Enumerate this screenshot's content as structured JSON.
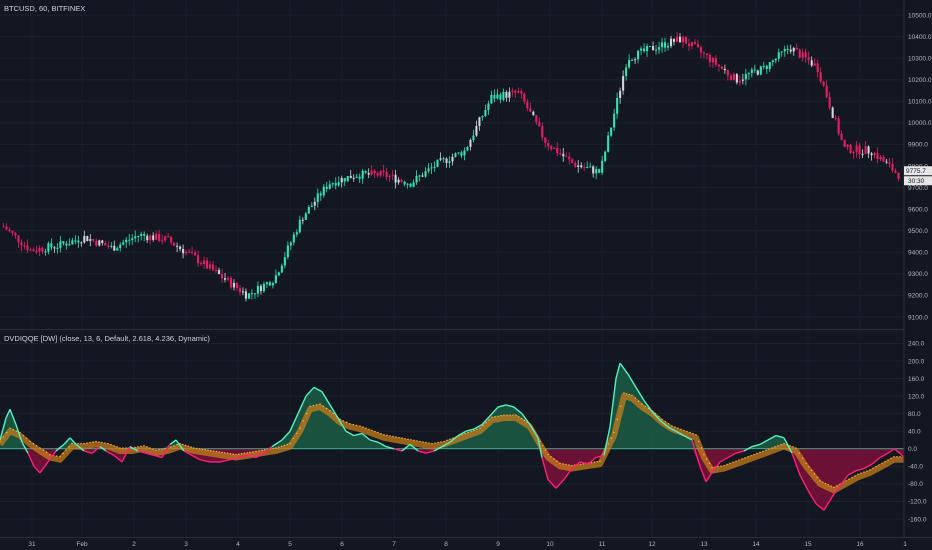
{
  "price_pane": {
    "title": "BTCUSD, 60, BITFINEX",
    "y_ticks": [
      "10500.0",
      "10400.0",
      "10300.0",
      "10200.0",
      "10100.0",
      "10000.0",
      "9900.0",
      "9800.0",
      "9700.0",
      "9600.0",
      "9500.0",
      "9400.0",
      "9300.0",
      "9200.0",
      "9100.0"
    ],
    "last_price": "9775.7",
    "countdown": "30:30",
    "colors": {
      "up": "#26a69a",
      "up_bright": "#2ee6b0",
      "down": "#e91e63",
      "neutral": "#d1d4dc"
    }
  },
  "indicator_pane": {
    "title": "DVDIQQE [DW] (close, 13, 6, Default, 2.618, 4.236, Dynamic)",
    "y_ticks": [
      "240.0",
      "200.0",
      "160.0",
      "120.0",
      "80.0",
      "40.0",
      "0.0",
      "-40.0",
      "-80.0",
      "-120.0",
      "-160.0"
    ],
    "colors": {
      "pos_fill": "#1b5e45",
      "pos_line": "#53f3c3",
      "neg_fill": "#7a1038",
      "neg_line": "#ff1f7a",
      "trail": "#c77c1a",
      "trail_dots": "#ffb74d"
    }
  },
  "x_axis": {
    "ticks": [
      "31",
      "Feb",
      "2",
      "3",
      "4",
      "5",
      "6",
      "7",
      "8",
      "9",
      "10",
      "11",
      "12",
      "13",
      "14",
      "15",
      "16",
      "1"
    ]
  },
  "chart_data": [
    {
      "type": "candlestick",
      "title": "BTCUSD, 60, BITFINEX",
      "ylim": [
        9060,
        10560
      ],
      "x_categories": [
        "31",
        "Feb",
        "2",
        "3",
        "4",
        "5",
        "6",
        "7",
        "8",
        "9",
        "10",
        "11",
        "12",
        "13",
        "14",
        "15",
        "16"
      ],
      "close_series": [
        {
          "day": "31",
          "close": 9520
        },
        {
          "day": "31.5",
          "close": 9410
        },
        {
          "day": "Feb",
          "close": 9430
        },
        {
          "day": "Feb.5",
          "close": 9470
        },
        {
          "day": "2",
          "close": 9420
        },
        {
          "day": "2.5",
          "close": 9480
        },
        {
          "day": "3",
          "close": 9460
        },
        {
          "day": "3.5",
          "close": 9380
        },
        {
          "day": "4",
          "close": 9290
        },
        {
          "day": "4.5",
          "close": 9200
        },
        {
          "day": "5",
          "close": 9280
        },
        {
          "day": "5.5",
          "close": 9560
        },
        {
          "day": "6",
          "close": 9720
        },
        {
          "day": "6.5",
          "close": 9760
        },
        {
          "day": "7",
          "close": 9760
        },
        {
          "day": "7.5",
          "close": 9720
        },
        {
          "day": "8",
          "close": 9810
        },
        {
          "day": "8.5",
          "close": 9870
        },
        {
          "day": "9",
          "close": 10120
        },
        {
          "day": "9.5",
          "close": 10140
        },
        {
          "day": "10",
          "close": 9910
        },
        {
          "day": "10.5",
          "close": 9810
        },
        {
          "day": "11",
          "close": 9770
        },
        {
          "day": "11.5",
          "close": 10300
        },
        {
          "day": "12",
          "close": 10350
        },
        {
          "day": "12.5",
          "close": 10390
        },
        {
          "day": "13",
          "close": 10300
        },
        {
          "day": "13.5",
          "close": 10200
        },
        {
          "day": "14",
          "close": 10250
        },
        {
          "day": "14.5",
          "close": 10350
        },
        {
          "day": "15",
          "close": 10260
        },
        {
          "day": "15.5",
          "close": 9880
        },
        {
          "day": "16",
          "close": 9870
        },
        {
          "day": "16.5",
          "close": 9760
        }
      ],
      "last": 9775.7
    },
    {
      "type": "area",
      "title": "DVDIQQE [DW] (close, 13, 6, Default, 2.618, 4.236, Dynamic)",
      "ylim": [
        -190,
        250
      ],
      "series": [
        {
          "name": "DVDI",
          "points": [
            [
              0,
              20
            ],
            [
              6,
              70
            ],
            [
              10,
              90
            ],
            [
              16,
              55
            ],
            [
              22,
              15
            ],
            [
              28,
              -10
            ],
            [
              34,
              -40
            ],
            [
              40,
              -55
            ],
            [
              48,
              -30
            ],
            [
              56,
              -5
            ],
            [
              64,
              10
            ],
            [
              70,
              25
            ],
            [
              76,
              10
            ],
            [
              84,
              -5
            ],
            [
              92,
              -10
            ],
            [
              100,
              5
            ],
            [
              106,
              -5
            ],
            [
              114,
              -15
            ],
            [
              122,
              -30
            ],
            [
              130,
              5
            ],
            [
              138,
              -5
            ],
            [
              146,
              -10
            ],
            [
              154,
              -15
            ],
            [
              162,
              -20
            ],
            [
              170,
              10
            ],
            [
              176,
              20
            ],
            [
              184,
              -5
            ],
            [
              192,
              -15
            ],
            [
              200,
              -25
            ],
            [
              210,
              -30
            ],
            [
              220,
              -30
            ],
            [
              230,
              -25
            ],
            [
              240,
              -20
            ],
            [
              248,
              -15
            ],
            [
              256,
              -20
            ],
            [
              264,
              -10
            ],
            [
              272,
              5
            ],
            [
              282,
              20
            ],
            [
              290,
              40
            ],
            [
              298,
              80
            ],
            [
              306,
              120
            ],
            [
              314,
              140
            ],
            [
              322,
              130
            ],
            [
              330,
              100
            ],
            [
              338,
              70
            ],
            [
              346,
              40
            ],
            [
              354,
              30
            ],
            [
              362,
              35
            ],
            [
              370,
              20
            ],
            [
              378,
              15
            ],
            [
              386,
              5
            ],
            [
              394,
              0
            ],
            [
              402,
              -5
            ],
            [
              410,
              10
            ],
            [
              418,
              -5
            ],
            [
              426,
              -10
            ],
            [
              434,
              -5
            ],
            [
              442,
              5
            ],
            [
              450,
              15
            ],
            [
              458,
              30
            ],
            [
              466,
              40
            ],
            [
              474,
              45
            ],
            [
              482,
              55
            ],
            [
              490,
              75
            ],
            [
              498,
              95
            ],
            [
              506,
              100
            ],
            [
              514,
              95
            ],
            [
              522,
              80
            ],
            [
              530,
              55
            ],
            [
              538,
              25
            ],
            [
              542,
              -20
            ],
            [
              548,
              -70
            ],
            [
              556,
              -90
            ],
            [
              564,
              -70
            ],
            [
              572,
              -45
            ],
            [
              580,
              -30
            ],
            [
              588,
              -35
            ],
            [
              596,
              -20
            ],
            [
              604,
              -15
            ],
            [
              610,
              50
            ],
            [
              616,
              160
            ],
            [
              620,
              195
            ],
            [
              628,
              170
            ],
            [
              636,
              140
            ],
            [
              644,
              110
            ],
            [
              652,
              85
            ],
            [
              660,
              65
            ],
            [
              668,
              50
            ],
            [
              676,
              40
            ],
            [
              684,
              30
            ],
            [
              692,
              20
            ],
            [
              700,
              -40
            ],
            [
              706,
              -75
            ],
            [
              712,
              -55
            ],
            [
              720,
              -30
            ],
            [
              728,
              -20
            ],
            [
              736,
              -10
            ],
            [
              744,
              -5
            ],
            [
              752,
              5
            ],
            [
              760,
              10
            ],
            [
              768,
              20
            ],
            [
              776,
              30
            ],
            [
              784,
              25
            ],
            [
              792,
              -10
            ],
            [
              800,
              -60
            ],
            [
              808,
              -95
            ],
            [
              816,
              -125
            ],
            [
              824,
              -140
            ],
            [
              832,
              -110
            ],
            [
              840,
              -85
            ],
            [
              848,
              -60
            ],
            [
              856,
              -50
            ],
            [
              864,
              -45
            ],
            [
              872,
              -35
            ],
            [
              880,
              -20
            ],
            [
              888,
              -10
            ],
            [
              894,
              0
            ],
            [
              900,
              -10
            ],
            [
              906,
              -25
            ]
          ]
        },
        {
          "name": "Trailing band",
          "points": [
            [
              0,
              10
            ],
            [
              10,
              40
            ],
            [
              20,
              30
            ],
            [
              30,
              10
            ],
            [
              40,
              -5
            ],
            [
              50,
              -20
            ],
            [
              60,
              -25
            ],
            [
              72,
              5
            ],
            [
              84,
              5
            ],
            [
              96,
              10
            ],
            [
              108,
              5
            ],
            [
              120,
              -5
            ],
            [
              132,
              -5
            ],
            [
              144,
              0
            ],
            [
              156,
              -10
            ],
            [
              168,
              -5
            ],
            [
              180,
              5
            ],
            [
              194,
              -5
            ],
            [
              208,
              -10
            ],
            [
              222,
              -15
            ],
            [
              236,
              -20
            ],
            [
              250,
              -15
            ],
            [
              262,
              -10
            ],
            [
              276,
              -5
            ],
            [
              290,
              5
            ],
            [
              300,
              40
            ],
            [
              310,
              90
            ],
            [
              320,
              95
            ],
            [
              330,
              80
            ],
            [
              340,
              60
            ],
            [
              350,
              50
            ],
            [
              360,
              45
            ],
            [
              372,
              35
            ],
            [
              384,
              25
            ],
            [
              396,
              20
            ],
            [
              408,
              15
            ],
            [
              420,
              10
            ],
            [
              432,
              5
            ],
            [
              444,
              10
            ],
            [
              456,
              20
            ],
            [
              468,
              30
            ],
            [
              480,
              40
            ],
            [
              492,
              65
            ],
            [
              504,
              70
            ],
            [
              516,
              70
            ],
            [
              530,
              50
            ],
            [
              540,
              10
            ],
            [
              548,
              -20
            ],
            [
              560,
              -40
            ],
            [
              572,
              -45
            ],
            [
              586,
              -40
            ],
            [
              600,
              -35
            ],
            [
              614,
              30
            ],
            [
              624,
              120
            ],
            [
              632,
              115
            ],
            [
              642,
              95
            ],
            [
              652,
              80
            ],
            [
              662,
              60
            ],
            [
              672,
              45
            ],
            [
              684,
              35
            ],
            [
              696,
              25
            ],
            [
              704,
              -20
            ],
            [
              712,
              -50
            ],
            [
              724,
              -45
            ],
            [
              736,
              -35
            ],
            [
              748,
              -25
            ],
            [
              760,
              -15
            ],
            [
              772,
              -5
            ],
            [
              784,
              5
            ],
            [
              796,
              -5
            ],
            [
              806,
              -40
            ],
            [
              820,
              -80
            ],
            [
              834,
              -95
            ],
            [
              846,
              -80
            ],
            [
              858,
              -65
            ],
            [
              870,
              -55
            ],
            [
              882,
              -40
            ],
            [
              894,
              -25
            ],
            [
              906,
              -25
            ]
          ]
        }
      ]
    }
  ]
}
